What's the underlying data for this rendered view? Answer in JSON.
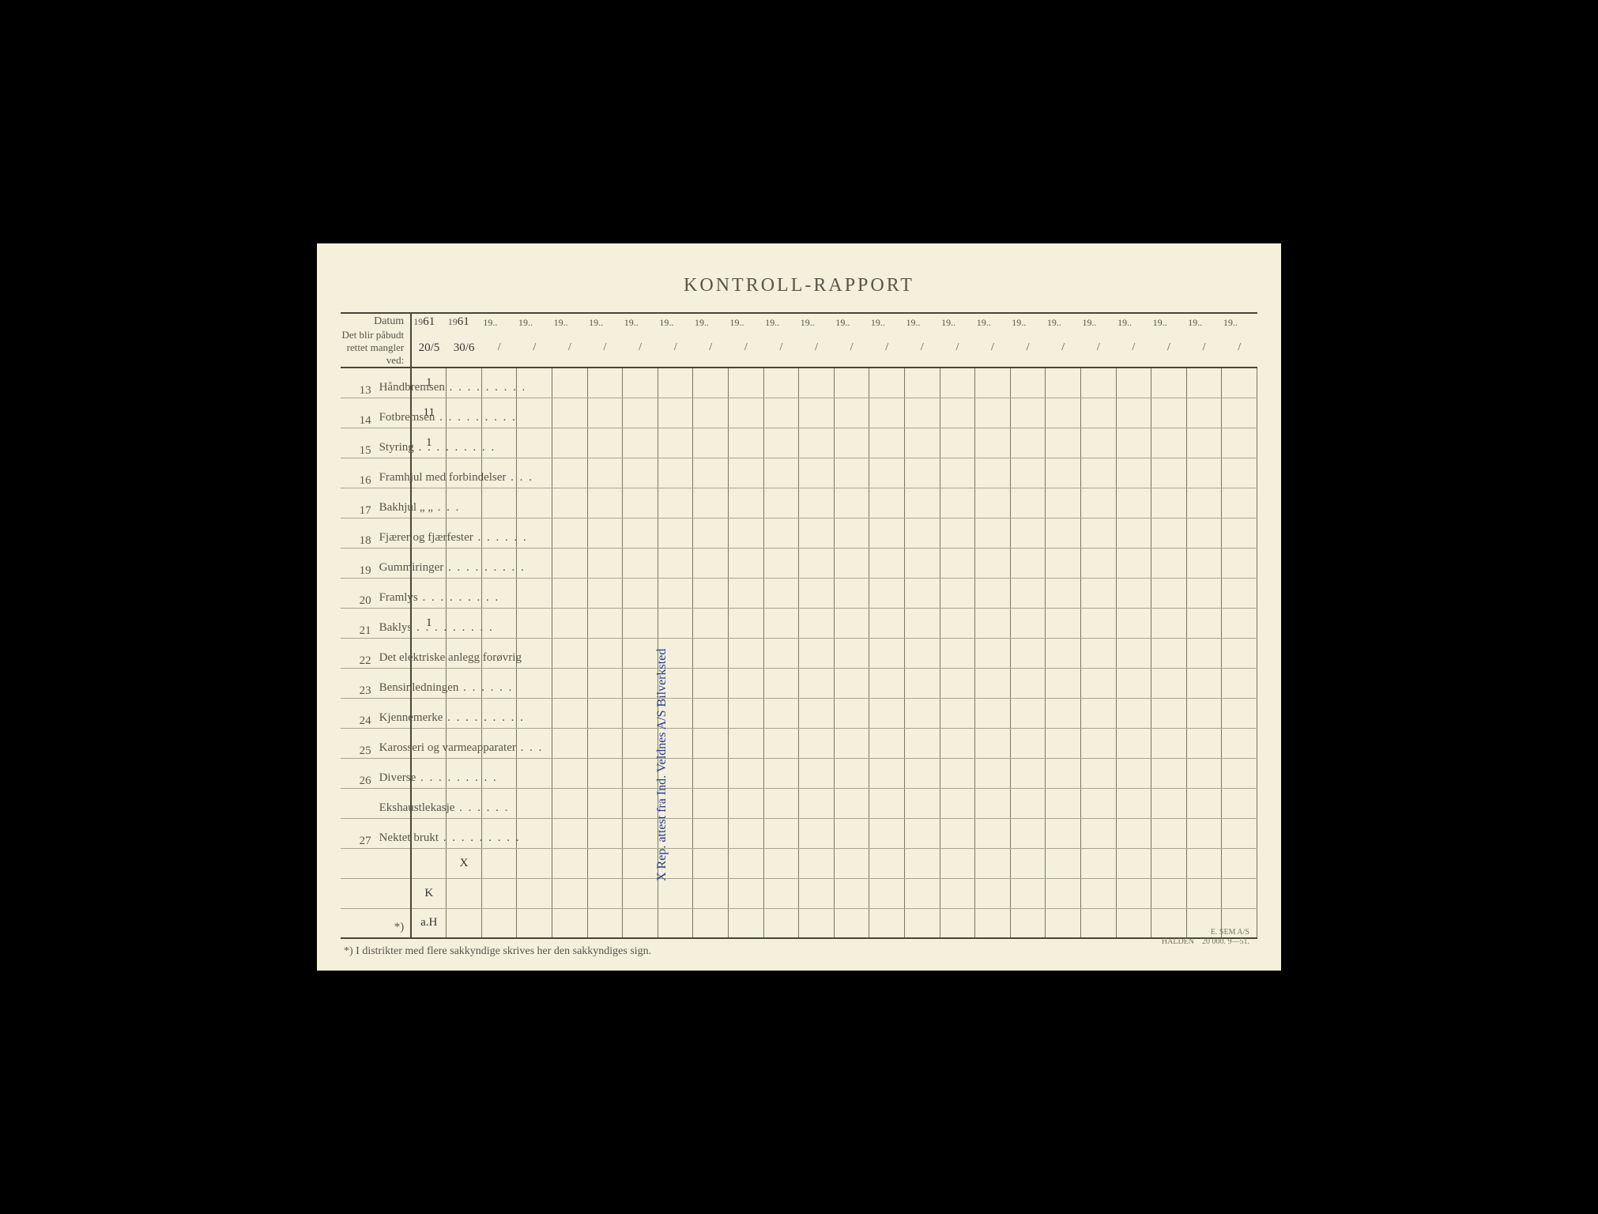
{
  "title": "KONTROLL-RAPPORT",
  "header": {
    "datum_label": "Datum",
    "sub_label": "Det blir påbudt rettet mangler ved:",
    "year_prefix": "19",
    "year_fills": [
      "61",
      "61"
    ],
    "date_fills": [
      "20/5",
      "30/6"
    ]
  },
  "rows": [
    {
      "n": "13",
      "label": "Håndbremsen",
      "dots": "long",
      "c1": "1",
      "c2": ""
    },
    {
      "n": "14",
      "label": "Fotbremsen",
      "dots": "long",
      "c1": "11",
      "c2": ""
    },
    {
      "n": "15",
      "label": "Styring",
      "dots": "long",
      "c1": "1",
      "c2": ""
    },
    {
      "n": "16",
      "label": "Framhjul med forbindelser",
      "dots": "short",
      "c1": "",
      "c2": ""
    },
    {
      "n": "17",
      "label": "Bakhjul        „            „",
      "dots": "short",
      "c1": "",
      "c2": ""
    },
    {
      "n": "18",
      "label": "Fjærer og fjærfester",
      "dots": "med",
      "c1": "",
      "c2": ""
    },
    {
      "n": "19",
      "label": "Gummiringer",
      "dots": "long",
      "c1": "",
      "c2": ""
    },
    {
      "n": "20",
      "label": "Framlys",
      "dots": "long",
      "c1": "",
      "c2": ""
    },
    {
      "n": "21",
      "label": "Baklys",
      "dots": "long",
      "c1": "1",
      "c2": ""
    },
    {
      "n": "22",
      "label": "Det elektriske anlegg forøvrig",
      "dots": "",
      "c1": "",
      "c2": ""
    },
    {
      "n": "23",
      "label": "Bensinledningen",
      "dots": "med",
      "c1": "",
      "c2": ""
    },
    {
      "n": "24",
      "label": "Kjennemerke",
      "dots": "long",
      "c1": "",
      "c2": ""
    },
    {
      "n": "25",
      "label": "Karosseri og varmeapparater",
      "dots": "short",
      "c1": "",
      "c2": ""
    },
    {
      "n": "26",
      "label": "Diverse",
      "dots": "long",
      "c1": "",
      "c2": ""
    },
    {
      "n": "",
      "label": "Ekshaustlekasje",
      "dots": "med",
      "c1": "",
      "c2": ""
    },
    {
      "n": "27",
      "label": "Nektet brukt",
      "dots": "long",
      "c1": "",
      "c2": ""
    },
    {
      "n": "",
      "label": "",
      "dots": "",
      "c1": "",
      "c2": "X"
    },
    {
      "n": "",
      "label": "",
      "dots": "",
      "c1": "K",
      "c2": ""
    },
    {
      "n": "",
      "label": "*)",
      "dots": "",
      "c1": "a.H",
      "c2": "",
      "align": "right"
    }
  ],
  "columns": 24,
  "vertical_note": "X Rep. attest fra Ind. Veldnes A/S Bilverksted",
  "footnote": "*)  I distrikter med flere sakkyndige skrives her den sakkyndiges sign.",
  "printinfo": {
    "l1": "E. SEM A/S",
    "l2": "HALDEN",
    "l3": "20 000.   9—51."
  },
  "colors": {
    "paper": "#f4f0dc",
    "ink": "#5a5548",
    "rule": "#7a7560",
    "rule_light": "#aaa48e",
    "rule_thick": "#4a4538",
    "accent": "#a85a3a",
    "pen": "#2a3a8a"
  }
}
